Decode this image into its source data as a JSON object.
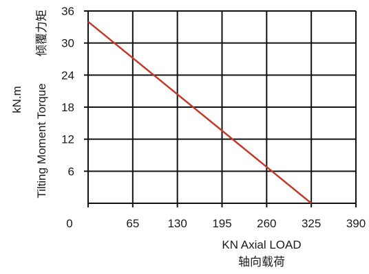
{
  "chart_data": {
    "type": "line",
    "title": "",
    "xlabel": "KN Axial LOAD",
    "xlabel_cn": "轴向载荷",
    "ylabel": "Tilting Moment Torque",
    "ylabel_cn": "倾覆力矩",
    "yunit": "kN.m",
    "x_ticks": [
      0,
      65,
      130,
      195,
      260,
      325,
      390
    ],
    "y_ticks": [
      6,
      12,
      18,
      24,
      30,
      36
    ],
    "xlim": [
      0,
      390
    ],
    "ylim": [
      0,
      36
    ],
    "grid": true,
    "series": [
      {
        "x": [
          0,
          325
        ],
        "y": [
          34,
          0
        ],
        "color": "#c0392b"
      }
    ]
  }
}
